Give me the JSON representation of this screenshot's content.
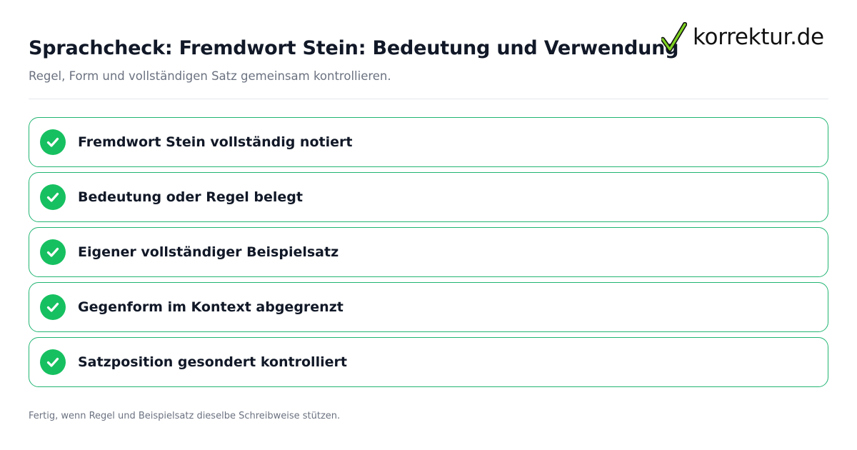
{
  "header": {
    "title": "Sprachcheck: Fremdwort Stein: Bedeutung und Verwendung",
    "subtitle": "Regel, Form und vollständigen Satz gemeinsam kontrollieren."
  },
  "logo": {
    "text": "korrektur.de",
    "icon": "checkmark-icon"
  },
  "checklist": {
    "items": [
      {
        "label": "Fremdwort Stein vollständig notiert",
        "checked": true
      },
      {
        "label": "Bedeutung oder Regel belegt",
        "checked": true
      },
      {
        "label": "Eigener vollständiger Beispielsatz",
        "checked": true
      },
      {
        "label": "Gegenform im Kontext abgegrenzt",
        "checked": true
      },
      {
        "label": "Satzposition gesondert kontrolliert",
        "checked": true
      }
    ]
  },
  "footer": {
    "note": "Fertig, wenn Regel und Beispielsatz dieselbe Schreibweise stützen."
  },
  "colors": {
    "accent": "#16c060",
    "border": "#22b573",
    "title": "#111827",
    "muted": "#6b7280"
  }
}
